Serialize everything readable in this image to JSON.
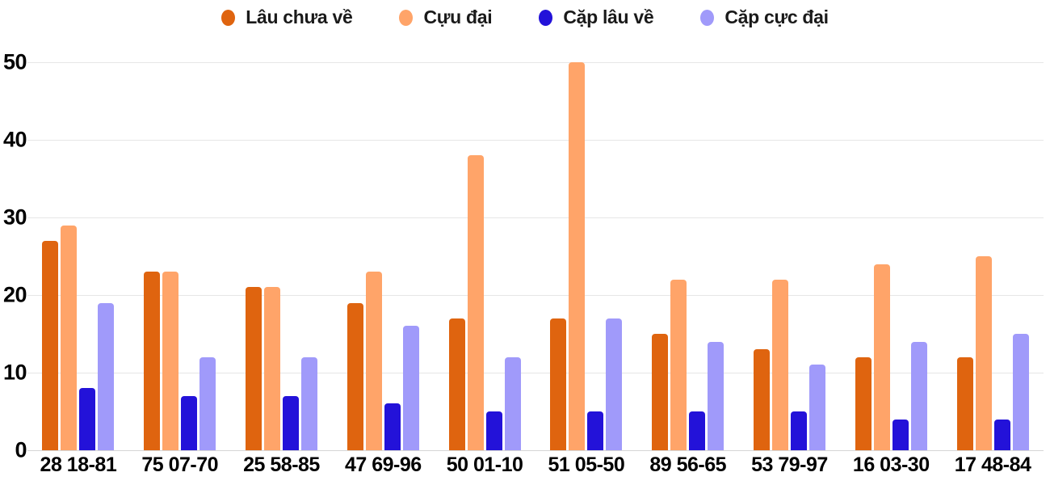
{
  "chart_data": {
    "type": "bar",
    "title": "",
    "xlabel": "",
    "ylabel": "",
    "legend_position": "top",
    "grid": true,
    "ylim": [
      0,
      50
    ],
    "y_ticks": [
      0,
      10,
      20,
      30,
      40,
      50
    ],
    "categories": [
      "28 18-81",
      "75 07-70",
      "25 58-85",
      "47 69-96",
      "50 01-10",
      "51 05-50",
      "89 56-65",
      "53 79-97",
      "16 03-30",
      "17 48-84"
    ],
    "series": [
      {
        "name": "Lâu chưa về",
        "color": "#df640f",
        "values": [
          27,
          23,
          21,
          19,
          17,
          17,
          15,
          13,
          12,
          12
        ]
      },
      {
        "name": "Cựu đại",
        "color": "#ffa469",
        "values": [
          29,
          23,
          21,
          23,
          38,
          50,
          22,
          22,
          24,
          25
        ]
      },
      {
        "name": "Cặp lâu về",
        "color": "#2312d9",
        "values": [
          8,
          7,
          7,
          6,
          5,
          5,
          5,
          5,
          4,
          4
        ]
      },
      {
        "name": "Cặp cực đại",
        "color": "#a09afa",
        "values": [
          19,
          12,
          12,
          16,
          12,
          17,
          14,
          11,
          14,
          15
        ]
      }
    ],
    "colors": {
      "background": "#ffffff",
      "text": "#000000",
      "gridline": "#e6e6e6",
      "baseline": "#d6d6d6"
    }
  }
}
